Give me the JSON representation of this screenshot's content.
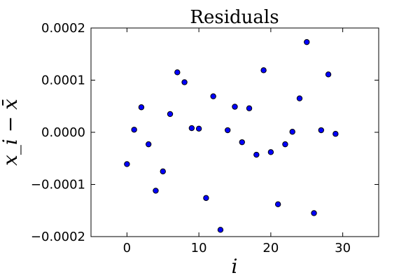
{
  "chart_data": {
    "type": "scatter",
    "title": "Residuals",
    "xlabel": "i",
    "ylabel": "x_i − x̄",
    "xlim": [
      -5,
      35
    ],
    "ylim": [
      -0.0002,
      0.0002
    ],
    "x_ticks": [
      0,
      10,
      20,
      30
    ],
    "x_tick_labels": [
      "0",
      "10",
      "20",
      "30"
    ],
    "y_ticks": [
      0.0002,
      0.0001,
      0.0,
      -0.0001,
      -0.0002
    ],
    "y_tick_labels": [
      "0.0002",
      "0.0001",
      "0.0000",
      "−0.0001",
      "−0.0002"
    ],
    "grid": false,
    "marker_color": "#0000ff",
    "marker_edge_color": "#000000",
    "points": [
      {
        "x": 0,
        "y": -6.1e-05
      },
      {
        "x": 1,
        "y": 5e-06
      },
      {
        "x": 2,
        "y": 4.8e-05
      },
      {
        "x": 3,
        "y": -2.3e-05
      },
      {
        "x": 4,
        "y": -0.000112
      },
      {
        "x": 5,
        "y": -7.5e-05
      },
      {
        "x": 6,
        "y": 3.5e-05
      },
      {
        "x": 7,
        "y": 0.000115
      },
      {
        "x": 8,
        "y": 9.6e-05
      },
      {
        "x": 9,
        "y": 8e-06
      },
      {
        "x": 10,
        "y": 7e-06
      },
      {
        "x": 11,
        "y": -0.000126
      },
      {
        "x": 12,
        "y": 6.9e-05
      },
      {
        "x": 13,
        "y": -0.000187
      },
      {
        "x": 14,
        "y": 4e-06
      },
      {
        "x": 15,
        "y": 4.9e-05
      },
      {
        "x": 16,
        "y": -1.9e-05
      },
      {
        "x": 17,
        "y": 4.6e-05
      },
      {
        "x": 18,
        "y": -4.3e-05
      },
      {
        "x": 19,
        "y": 0.000119
      },
      {
        "x": 20,
        "y": -3.8e-05
      },
      {
        "x": 21,
        "y": -0.000138
      },
      {
        "x": 22,
        "y": -2.3e-05
      },
      {
        "x": 23,
        "y": 1e-06
      },
      {
        "x": 24,
        "y": 6.5e-05
      },
      {
        "x": 25,
        "y": 0.000173
      },
      {
        "x": 26,
        "y": -0.000155
      },
      {
        "x": 27,
        "y": 4e-06
      },
      {
        "x": 28,
        "y": 0.000111
      },
      {
        "x": 29,
        "y": -3e-06
      }
    ]
  }
}
